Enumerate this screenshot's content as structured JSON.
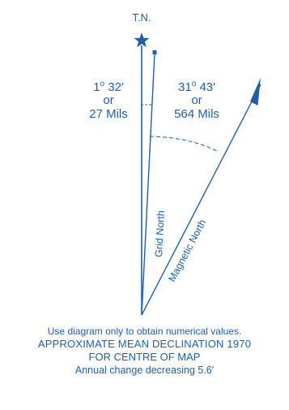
{
  "diagram": {
    "true_north_label": "T.N.",
    "grid_angle": {
      "degrees": "1",
      "minutes": "32′",
      "or": "or",
      "mils": "27 Mils"
    },
    "magnetic_angle": {
      "degrees": "31",
      "minutes": "43′",
      "or": "or",
      "mils": "564 Mils"
    },
    "grid_north_label": "Grid North",
    "magnetic_north_label": "Magnetic North",
    "colors": {
      "ink": "#1f5fa8"
    }
  },
  "caption": {
    "line1": "Use diagram only to obtain numerical values.",
    "line2": "APPROXIMATE MEAN DECLINATION 1970",
    "line3": "FOR CENTRE OF MAP",
    "line4": "Annual change decreasing 5.6′"
  }
}
